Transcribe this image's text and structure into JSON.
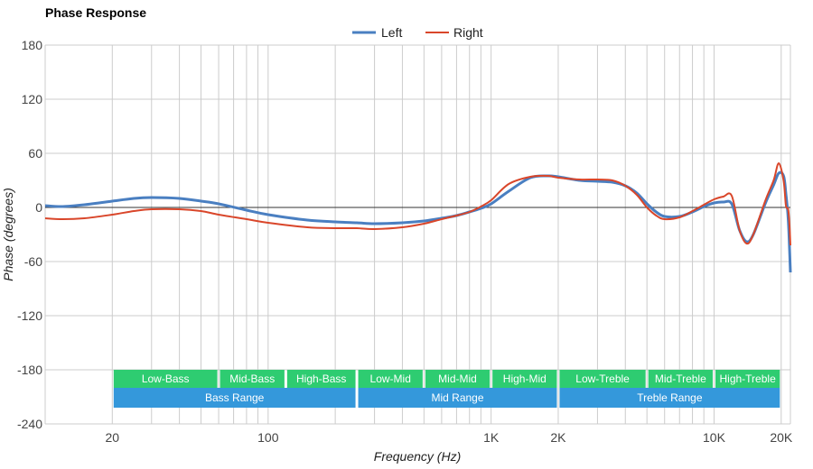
{
  "chart_data": {
    "type": "line",
    "title": "Phase Response",
    "xlabel": "Frequency (Hz)",
    "ylabel": "Phase (degrees)",
    "xscale": "log",
    "xlim": [
      10,
      22000
    ],
    "ylim": [
      -240,
      180
    ],
    "grid": true,
    "legend_position": "top-center",
    "x_ticks": [
      {
        "value": 20,
        "label": "20"
      },
      {
        "value": 100,
        "label": "100"
      },
      {
        "value": 1000,
        "label": "1K"
      },
      {
        "value": 2000,
        "label": "2K"
      },
      {
        "value": 10000,
        "label": "10K"
      },
      {
        "value": 20000,
        "label": "20K"
      }
    ],
    "y_ticks": [
      180,
      120,
      60,
      0,
      -60,
      -120,
      -180,
      -240
    ],
    "series": [
      {
        "name": "Left",
        "color": "#4a7fc1",
        "points": [
          [
            10,
            2
          ],
          [
            12,
            1
          ],
          [
            15,
            3
          ],
          [
            20,
            7
          ],
          [
            25,
            10
          ],
          [
            30,
            11
          ],
          [
            40,
            10
          ],
          [
            50,
            7
          ],
          [
            60,
            4
          ],
          [
            80,
            -3
          ],
          [
            100,
            -8
          ],
          [
            150,
            -14
          ],
          [
            200,
            -16
          ],
          [
            250,
            -17
          ],
          [
            300,
            -18
          ],
          [
            400,
            -17
          ],
          [
            500,
            -15
          ],
          [
            600,
            -12
          ],
          [
            700,
            -9
          ],
          [
            800,
            -5
          ],
          [
            900,
            -1
          ],
          [
            1000,
            4
          ],
          [
            1200,
            18
          ],
          [
            1500,
            33
          ],
          [
            1800,
            35
          ],
          [
            2000,
            34
          ],
          [
            2500,
            30
          ],
          [
            3000,
            29
          ],
          [
            3500,
            28
          ],
          [
            4000,
            24
          ],
          [
            4500,
            16
          ],
          [
            5000,
            4
          ],
          [
            5500,
            -5
          ],
          [
            6000,
            -10
          ],
          [
            7000,
            -10
          ],
          [
            8000,
            -5
          ],
          [
            9000,
            1
          ],
          [
            10000,
            5
          ],
          [
            11000,
            6
          ],
          [
            12000,
            4
          ],
          [
            13000,
            -25
          ],
          [
            14000,
            -38
          ],
          [
            15000,
            -30
          ],
          [
            17000,
            5
          ],
          [
            18500,
            25
          ],
          [
            19500,
            38
          ],
          [
            20500,
            35
          ],
          [
            21000,
            15
          ],
          [
            21500,
            -12
          ],
          [
            21800,
            -45
          ],
          [
            22000,
            -72
          ]
        ]
      },
      {
        "name": "Right",
        "color": "#d9462a",
        "points": [
          [
            10,
            -12
          ],
          [
            12,
            -13
          ],
          [
            15,
            -12
          ],
          [
            20,
            -8
          ],
          [
            25,
            -4
          ],
          [
            30,
            -2
          ],
          [
            40,
            -2
          ],
          [
            50,
            -4
          ],
          [
            60,
            -8
          ],
          [
            80,
            -13
          ],
          [
            100,
            -17
          ],
          [
            150,
            -22
          ],
          [
            200,
            -23
          ],
          [
            250,
            -23
          ],
          [
            300,
            -24
          ],
          [
            400,
            -22
          ],
          [
            500,
            -18
          ],
          [
            600,
            -13
          ],
          [
            700,
            -9
          ],
          [
            800,
            -5
          ],
          [
            900,
            1
          ],
          [
            1000,
            8
          ],
          [
            1200,
            26
          ],
          [
            1500,
            34
          ],
          [
            1800,
            35
          ],
          [
            2000,
            33
          ],
          [
            2500,
            31
          ],
          [
            3000,
            31
          ],
          [
            3500,
            30
          ],
          [
            4000,
            24
          ],
          [
            4500,
            14
          ],
          [
            5000,
            0
          ],
          [
            5500,
            -9
          ],
          [
            6000,
            -13
          ],
          [
            7000,
            -11
          ],
          [
            8000,
            -4
          ],
          [
            9000,
            3
          ],
          [
            10000,
            9
          ],
          [
            11000,
            12
          ],
          [
            12000,
            13
          ],
          [
            13000,
            -25
          ],
          [
            14000,
            -40
          ],
          [
            15000,
            -30
          ],
          [
            17000,
            8
          ],
          [
            18500,
            30
          ],
          [
            19500,
            49
          ],
          [
            20500,
            30
          ],
          [
            21000,
            2
          ],
          [
            21500,
            -2
          ],
          [
            21800,
            -20
          ],
          [
            22000,
            -42
          ]
        ]
      }
    ],
    "bands": [
      {
        "row": 1,
        "label": "Low-Bass",
        "from": 20,
        "to": 60,
        "color": "#2ecc71"
      },
      {
        "row": 1,
        "label": "Mid-Bass",
        "from": 60,
        "to": 120,
        "color": "#2ecc71"
      },
      {
        "row": 1,
        "label": "High-Bass",
        "from": 120,
        "to": 250,
        "color": "#2ecc71"
      },
      {
        "row": 1,
        "label": "Low-Mid",
        "from": 250,
        "to": 500,
        "color": "#2ecc71"
      },
      {
        "row": 1,
        "label": "Mid-Mid",
        "from": 500,
        "to": 1000,
        "color": "#2ecc71"
      },
      {
        "row": 1,
        "label": "High-Mid",
        "from": 1000,
        "to": 2000,
        "color": "#2ecc71"
      },
      {
        "row": 1,
        "label": "Low-Treble",
        "from": 2000,
        "to": 5000,
        "color": "#2ecc71"
      },
      {
        "row": 1,
        "label": "Mid-Treble",
        "from": 5000,
        "to": 10000,
        "color": "#2ecc71"
      },
      {
        "row": 1,
        "label": "High-Treble",
        "from": 10000,
        "to": 20000,
        "color": "#2ecc71"
      },
      {
        "row": 2,
        "label": "Bass Range",
        "from": 20,
        "to": 250,
        "color": "#3498db"
      },
      {
        "row": 2,
        "label": "Mid Range",
        "from": 250,
        "to": 2000,
        "color": "#3498db"
      },
      {
        "row": 2,
        "label": "Treble Range",
        "from": 2000,
        "to": 20000,
        "color": "#3498db"
      }
    ],
    "band_value_ranges": {
      "1": [
        -180,
        -200
      ],
      "2": [
        -200,
        -222
      ]
    }
  }
}
